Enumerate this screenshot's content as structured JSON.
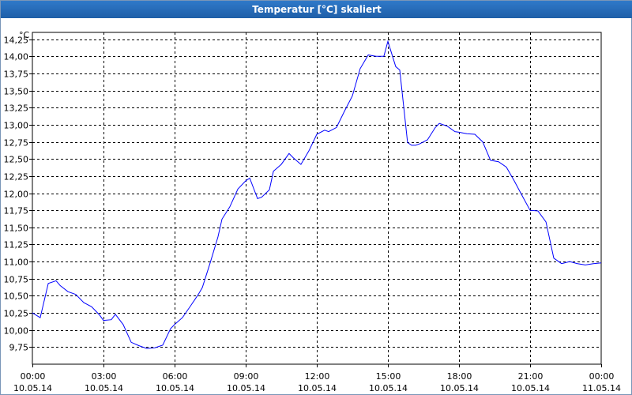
{
  "window": {
    "title": "Temperatur [°C] skaliert"
  },
  "chart_data": {
    "type": "line",
    "title": "Temperatur [°C] skaliert",
    "y_unit": "°C",
    "ylim": [
      9.5,
      14.35
    ],
    "xlim_hours": [
      0,
      24
    ],
    "grid": true,
    "legend": "none",
    "y_ticks": [
      "9,75",
      "10,00",
      "10,25",
      "10,50",
      "10,75",
      "11,00",
      "11,25",
      "11,50",
      "11,75",
      "12,00",
      "12,25",
      "12,50",
      "12,75",
      "13,00",
      "13,25",
      "13,50",
      "13,75",
      "14,00",
      "14,25"
    ],
    "y_tick_values": [
      9.75,
      10.0,
      10.25,
      10.5,
      10.75,
      11.0,
      11.25,
      11.5,
      11.75,
      12.0,
      12.25,
      12.5,
      12.75,
      13.0,
      13.25,
      13.5,
      13.75,
      14.0,
      14.25
    ],
    "x_ticks": [
      {
        "time": "00:00",
        "date": "10.05.14"
      },
      {
        "time": "03:00",
        "date": "10.05.14"
      },
      {
        "time": "06:00",
        "date": "10.05.14"
      },
      {
        "time": "09:00",
        "date": "10.05.14"
      },
      {
        "time": "12:00",
        "date": "10.05.14"
      },
      {
        "time": "15:00",
        "date": "10.05.14"
      },
      {
        "time": "18:00",
        "date": "10.05.14"
      },
      {
        "time": "21:00",
        "date": "10.05.14"
      },
      {
        "time": "00:00",
        "date": "11.05.14"
      }
    ],
    "series": [
      {
        "color": "#0000ff",
        "x_hours": [
          0,
          0.33,
          0.67,
          1.0,
          1.17,
          1.5,
          1.83,
          2.17,
          2.5,
          2.83,
          3.0,
          3.33,
          3.5,
          3.83,
          4.17,
          4.5,
          4.83,
          5.17,
          5.5,
          5.83,
          6.0,
          6.33,
          6.67,
          7.0,
          7.17,
          7.5,
          7.83,
          8.0,
          8.33,
          8.67,
          9.0,
          9.17,
          9.5,
          9.67,
          10.0,
          10.17,
          10.5,
          10.83,
          11.0,
          11.33,
          11.67,
          12.0,
          12.33,
          12.5,
          12.83,
          13.17,
          13.5,
          13.83,
          14.17,
          14.5,
          14.83,
          15.0,
          15.33,
          15.5,
          15.83,
          16.0,
          16.17,
          16.33,
          16.67,
          17.0,
          17.17,
          17.5,
          17.83,
          18.0,
          18.33,
          18.67,
          19.0,
          19.33,
          19.67,
          20.0,
          20.33,
          20.67,
          21.0,
          21.33,
          21.67,
          22.0,
          22.33,
          22.67,
          23.0,
          23.33,
          23.67,
          24.0
        ],
        "values": [
          10.25,
          10.18,
          10.68,
          10.72,
          10.65,
          10.56,
          10.52,
          10.4,
          10.34,
          10.22,
          10.14,
          10.15,
          10.23,
          10.08,
          9.82,
          9.77,
          9.73,
          9.74,
          9.78,
          10.02,
          10.08,
          10.18,
          10.35,
          10.52,
          10.62,
          10.98,
          11.36,
          11.62,
          11.8,
          12.06,
          12.18,
          12.22,
          11.92,
          11.94,
          12.05,
          12.32,
          12.42,
          12.58,
          12.52,
          12.42,
          12.62,
          12.86,
          12.92,
          12.9,
          12.96,
          13.2,
          13.42,
          13.82,
          14.02,
          14.0,
          14.0,
          14.22,
          13.85,
          13.8,
          12.74,
          12.7,
          12.7,
          12.72,
          12.78,
          12.96,
          13.02,
          12.98,
          12.9,
          12.89,
          12.87,
          12.86,
          12.75,
          12.48,
          12.46,
          12.38,
          12.18,
          11.96,
          11.75,
          11.74,
          11.58,
          11.05,
          10.97,
          11.0,
          10.97,
          10.95,
          10.97,
          10.98
        ]
      }
    ]
  }
}
